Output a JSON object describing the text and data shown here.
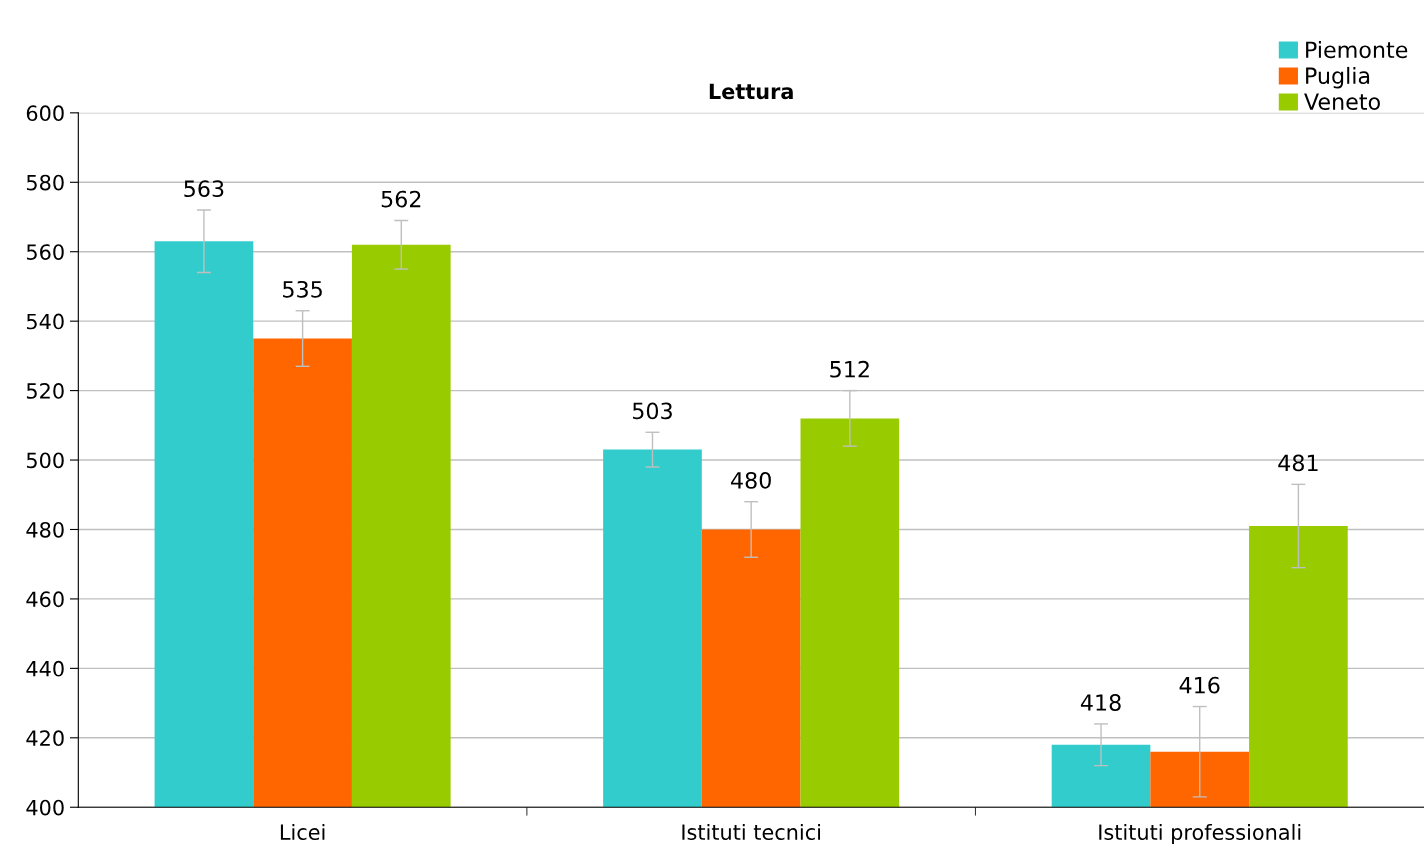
{
  "chart_data": {
    "type": "bar",
    "title": "Lettura",
    "categories": [
      "Licei",
      "Istituti tecnici",
      "Istituti professionali"
    ],
    "series": [
      {
        "name": "Piemonte",
        "color": "#33cccc",
        "values": [
          563,
          503,
          418
        ],
        "errors": [
          9,
          5,
          6
        ]
      },
      {
        "name": "Puglia",
        "color": "#ff6600",
        "values": [
          535,
          480,
          416
        ],
        "errors": [
          8,
          8,
          13
        ]
      },
      {
        "name": "Veneto",
        "color": "#99cc00",
        "values": [
          562,
          512,
          481
        ],
        "errors": [
          7,
          8,
          12
        ]
      }
    ],
    "ylim": [
      400,
      600
    ],
    "yticks": [
      400,
      420,
      440,
      460,
      480,
      500,
      520,
      540,
      560,
      580,
      600
    ],
    "grid": "y",
    "legend": "top right",
    "data_labels": true
  }
}
